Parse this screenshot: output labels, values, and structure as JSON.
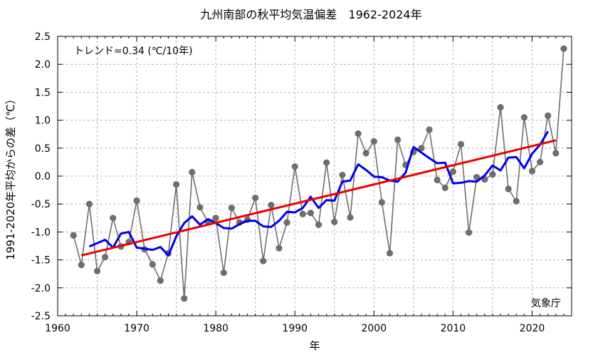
{
  "chart_data": {
    "type": "line",
    "title": "九州南部の秋平均気温偏差　1962-2024年",
    "xlabel": "年",
    "ylabel": "1991-2020年平均からの差（℃）",
    "xlim": [
      1960,
      2025
    ],
    "ylim": [
      -2.5,
      2.5
    ],
    "x_ticks": [
      1960,
      1970,
      1980,
      1990,
      2000,
      2010,
      2020
    ],
    "y_ticks": [
      -2.5,
      -2.0,
      -1.5,
      -1.0,
      -0.5,
      0.0,
      0.5,
      1.0,
      1.5,
      2.0,
      2.5
    ],
    "y_tick_labels": [
      "-2.5",
      "-2.0",
      "-1.5",
      "-1.0",
      "-0.5",
      "0.0",
      "0.5",
      "1.0",
      "1.5",
      "2.0",
      "2.5"
    ],
    "grid": true,
    "trend_annotation": "トレンド=0.34 (℃/10年)",
    "source_label": "気象庁",
    "colors": {
      "annual": "#6e6e6e",
      "moving_average": "#0000ee",
      "trend": "#ee0000",
      "grid": "#b0b0b0"
    },
    "series": [
      {
        "kind": "annual",
        "x": [
          1962,
          1963,
          1964,
          1965,
          1966,
          1967,
          1968,
          1969,
          1970,
          1971,
          1972,
          1973,
          1974,
          1975,
          1976,
          1977,
          1978,
          1979,
          1980,
          1981,
          1982,
          1983,
          1984,
          1985,
          1986,
          1987,
          1988,
          1989,
          1990,
          1991,
          1992,
          1993,
          1994,
          1995,
          1996,
          1997,
          1998,
          1999,
          2000,
          2001,
          2002,
          2003,
          2004,
          2005,
          2006,
          2007,
          2008,
          2009,
          2010,
          2011,
          2012,
          2013,
          2014,
          2015,
          2016,
          2017,
          2018,
          2019,
          2020,
          2021,
          2022,
          2023,
          2024
        ],
        "values": [
          -1.06,
          -1.59,
          -0.5,
          -1.7,
          -1.45,
          -0.75,
          -1.26,
          -1.18,
          -0.44,
          -1.31,
          -1.58,
          -1.87,
          -1.38,
          -0.15,
          -2.19,
          0.07,
          -0.56,
          -0.82,
          -0.75,
          -1.73,
          -0.57,
          -0.83,
          -0.78,
          -0.39,
          -1.52,
          -0.52,
          -1.29,
          -0.83,
          0.17,
          -0.68,
          -0.66,
          -0.87,
          0.24,
          -0.82,
          0.02,
          -0.74,
          0.76,
          0.41,
          0.62,
          -0.47,
          -1.38,
          0.65,
          0.2,
          0.43,
          0.5,
          0.83,
          -0.07,
          -0.21,
          0.08,
          0.57,
          -1.01,
          -0.02,
          -0.06,
          0.03,
          1.23,
          -0.23,
          -0.45,
          1.05,
          0.09,
          0.25,
          1.08,
          0.41,
          2.28
        ]
      },
      {
        "kind": "moving_average",
        "x": [
          1964,
          1965,
          1966,
          1967,
          1968,
          1969,
          1970,
          1971,
          1972,
          1973,
          1974,
          1975,
          1976,
          1977,
          1978,
          1979,
          1980,
          1981,
          1982,
          1983,
          1984,
          1985,
          1986,
          1987,
          1988,
          1989,
          1990,
          1991,
          1992,
          1993,
          1994,
          1995,
          1996,
          1997,
          1998,
          1999,
          2000,
          2001,
          2002,
          2003,
          2004,
          2005,
          2006,
          2007,
          2008,
          2009,
          2010,
          2011,
          2012,
          2013,
          2014,
          2015,
          2016,
          2017,
          2018,
          2019,
          2020,
          2021,
          2022
        ],
        "values": [
          -1.26,
          -1.2,
          -1.14,
          -1.28,
          -1.03,
          -1.0,
          -1.28,
          -1.3,
          -1.32,
          -1.27,
          -1.42,
          -1.08,
          -0.84,
          -0.72,
          -0.87,
          -0.77,
          -0.84,
          -0.93,
          -0.94,
          -0.86,
          -0.8,
          -0.8,
          -0.9,
          -0.91,
          -0.8,
          -0.64,
          -0.65,
          -0.57,
          -0.37,
          -0.57,
          -0.43,
          -0.44,
          -0.1,
          -0.08,
          0.21,
          0.11,
          -0.01,
          -0.02,
          -0.08,
          -0.1,
          0.06,
          0.52,
          0.42,
          0.32,
          0.23,
          0.24,
          -0.13,
          -0.12,
          -0.09,
          -0.1,
          0.01,
          0.19,
          0.1,
          0.33,
          0.34,
          0.14,
          0.4,
          0.56,
          0.8
        ]
      },
      {
        "kind": "trend",
        "x": [
          1963,
          2023
        ],
        "values": [
          -1.42,
          0.64
        ]
      }
    ]
  }
}
